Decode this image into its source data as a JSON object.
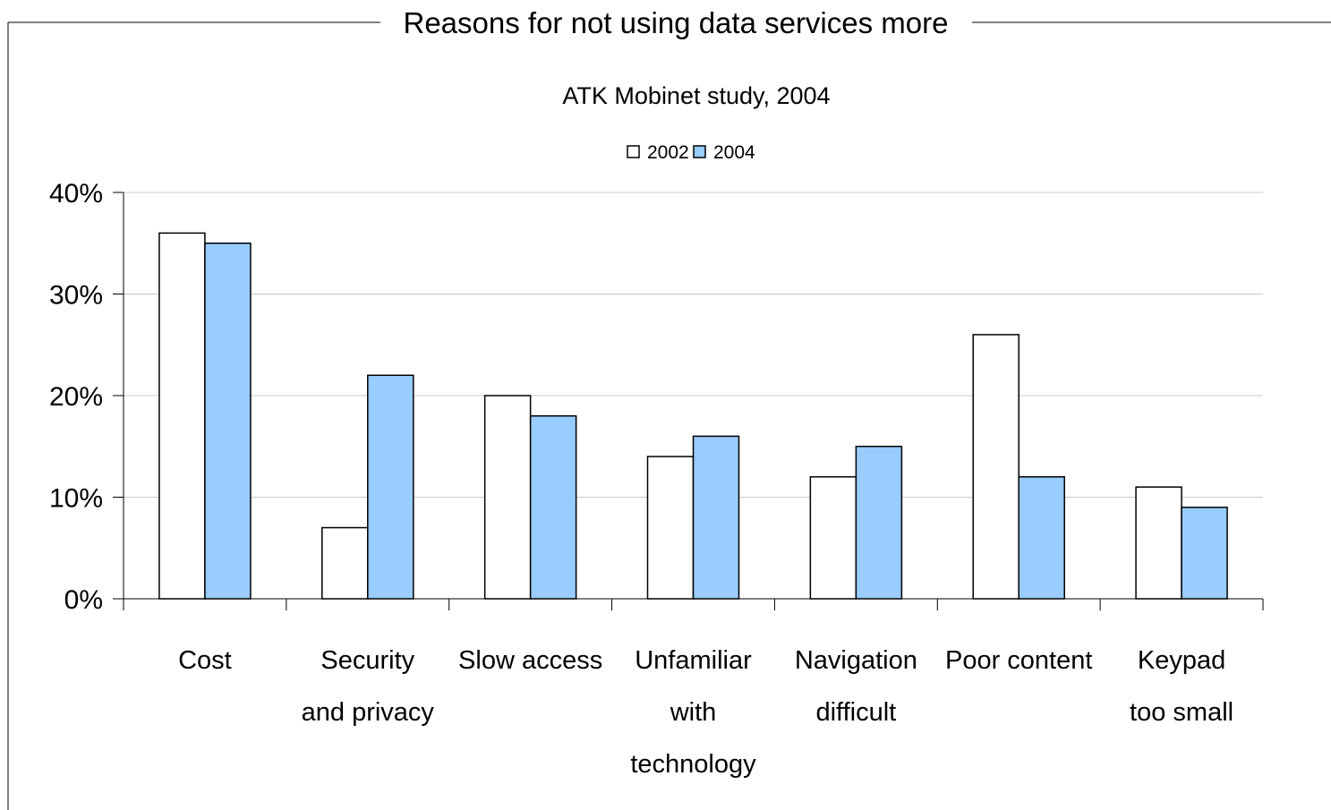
{
  "chart_data": {
    "type": "bar",
    "title": "Reasons for not using data services more",
    "subtitle": "ATK Mobinet study, 2004",
    "categories": [
      "Cost",
      "Security and privacy",
      "Slow access",
      "Unfamiliar with technology",
      "Navigation difficult",
      "Poor content",
      "Keypad too small"
    ],
    "category_lines": [
      [
        "Cost"
      ],
      [
        "Security",
        "and privacy"
      ],
      [
        "Slow access"
      ],
      [
        "Unfamiliar",
        "with",
        "technology"
      ],
      [
        "Navigation",
        "difficult"
      ],
      [
        "Poor content"
      ],
      [
        "Keypad",
        "too small"
      ]
    ],
    "series": [
      {
        "name": "2002",
        "color": "#ffffff",
        "values": [
          36,
          7,
          20,
          14,
          12,
          26,
          11
        ]
      },
      {
        "name": "2004",
        "color": "#99ccff",
        "values": [
          35,
          22,
          18,
          16,
          15,
          12,
          9
        ]
      }
    ],
    "ylim": [
      0,
      40
    ],
    "yticks": [
      0,
      10,
      20,
      30,
      40
    ],
    "ytick_labels": [
      "0%",
      "10%",
      "20%",
      "30%",
      "40%"
    ],
    "xlabel": "",
    "ylabel": "",
    "grid": true,
    "legend_position": "top-center"
  }
}
